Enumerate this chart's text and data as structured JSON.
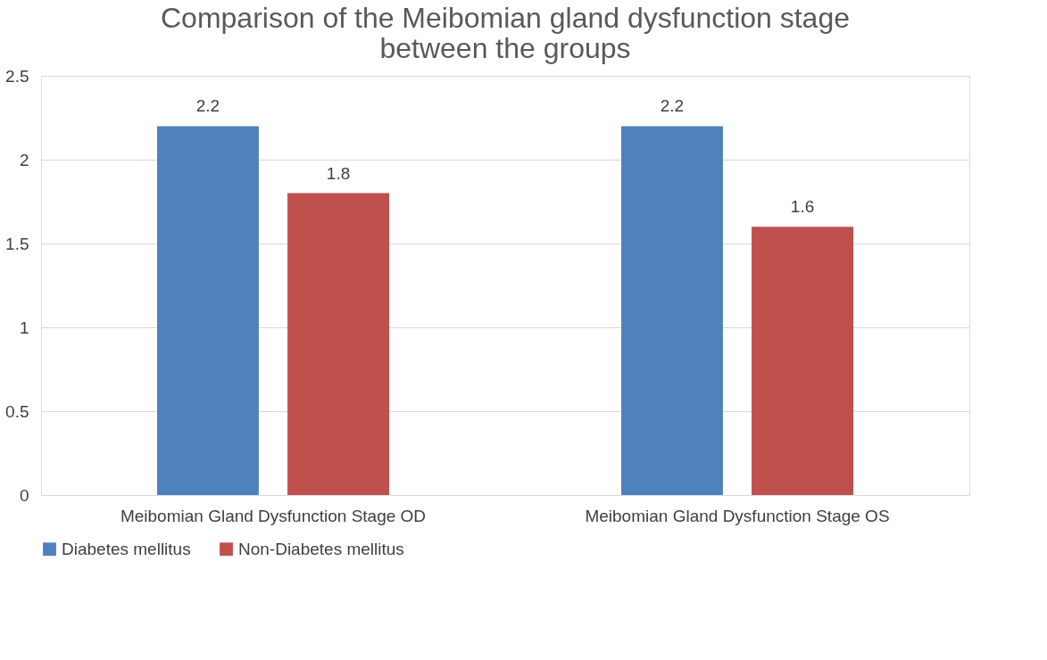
{
  "chart_data": {
    "type": "bar",
    "title": "Comparison of the Meibomian gland dysfunction stage between the groups",
    "categories": [
      "Meibomian Gland Dysfunction Stage OD",
      "Meibomian Gland Dysfunction Stage OS"
    ],
    "series": [
      {
        "name": "Diabetes mellitus",
        "color": "#4f81bd",
        "values": [
          2.2,
          2.2
        ]
      },
      {
        "name": "Non-Diabetes mellitus",
        "color": "#c0504d",
        "values": [
          1.8,
          1.6
        ]
      }
    ],
    "ylim": [
      0,
      2.5
    ],
    "yticks": [
      0,
      0.5,
      1,
      1.5,
      2,
      2.5
    ],
    "grid": "y",
    "legend": "bottom",
    "data_labels": true
  }
}
